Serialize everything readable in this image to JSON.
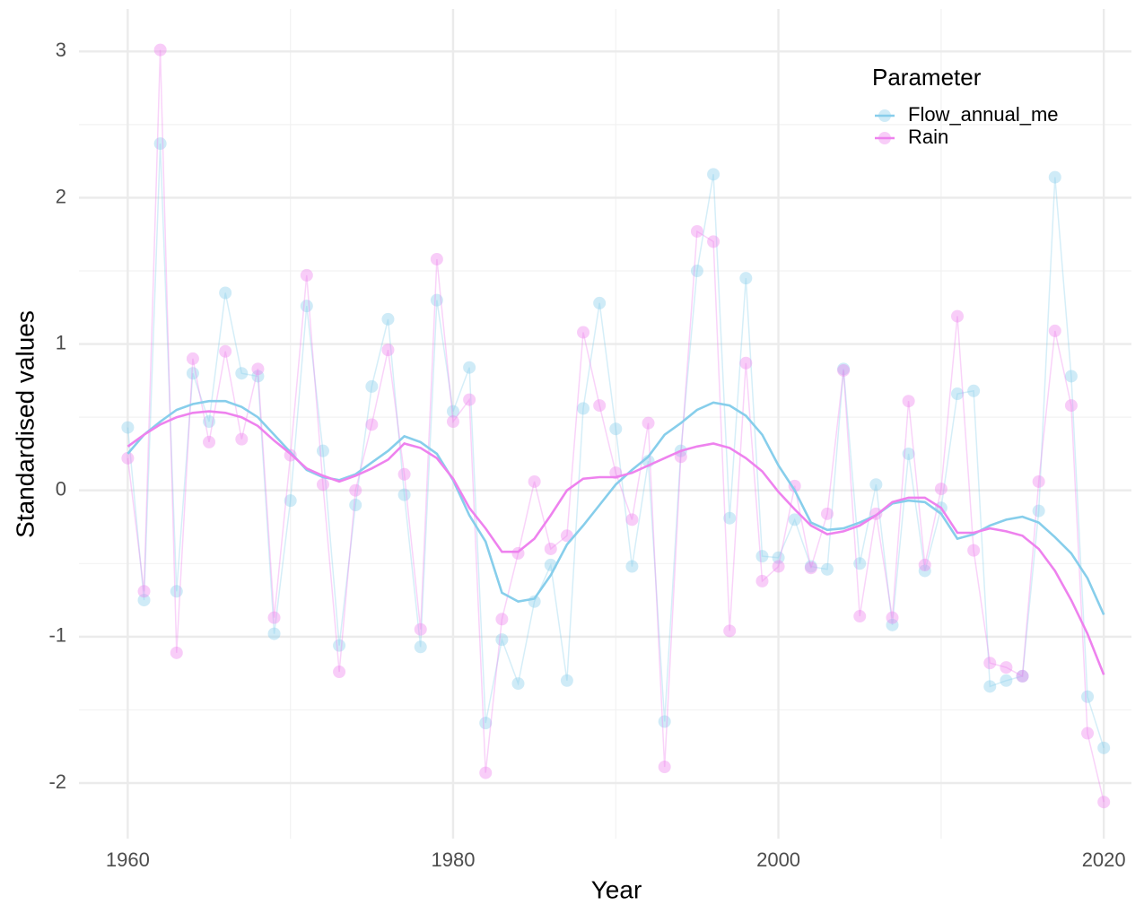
{
  "chart_data": {
    "type": "line",
    "x_label": "Year",
    "y_label": "Standardised values",
    "legend_title": "Parameter",
    "legend_position": "top-right",
    "x": [
      1960,
      1961,
      1962,
      1963,
      1964,
      1965,
      1966,
      1967,
      1968,
      1969,
      1970,
      1971,
      1972,
      1973,
      1974,
      1975,
      1976,
      1977,
      1978,
      1979,
      1980,
      1981,
      1982,
      1983,
      1984,
      1985,
      1986,
      1987,
      1988,
      1989,
      1990,
      1991,
      1992,
      1993,
      1994,
      1995,
      1996,
      1997,
      1998,
      1999,
      2000,
      2001,
      2002,
      2003,
      2004,
      2005,
      2006,
      2007,
      2008,
      2009,
      2010,
      2011,
      2012,
      2013,
      2014,
      2015,
      2016,
      2017,
      2018,
      2019,
      2020
    ],
    "series": [
      {
        "name": "Flow_annual_me",
        "color": "#87ceeb",
        "values": [
          0.43,
          -0.75,
          2.37,
          -0.69,
          0.8,
          0.47,
          1.35,
          0.8,
          0.78,
          -0.98,
          -0.07,
          1.26,
          0.27,
          -1.06,
          -0.1,
          0.71,
          1.17,
          -0.03,
          -1.07,
          1.3,
          0.54,
          0.84,
          -1.59,
          -1.02,
          -1.32,
          -0.76,
          -0.51,
          -1.3,
          0.56,
          1.28,
          0.42,
          -0.52,
          0.2,
          -1.58,
          0.27,
          1.5,
          2.16,
          -0.19,
          1.45,
          -0.45,
          -0.46,
          -0.2,
          -0.52,
          -0.54,
          0.83,
          -0.5,
          0.04,
          -0.92,
          0.25,
          -0.55,
          -0.12,
          0.66,
          0.68,
          -1.34,
          -1.3,
          -1.27,
          -0.14,
          2.14,
          0.78,
          -1.41,
          -1.76
        ],
        "smooth": [
          0.25,
          0.38,
          0.47,
          0.55,
          0.59,
          0.61,
          0.61,
          0.57,
          0.5,
          0.38,
          0.26,
          0.14,
          0.09,
          0.07,
          0.11,
          0.19,
          0.27,
          0.37,
          0.33,
          0.25,
          0.07,
          -0.17,
          -0.35,
          -0.7,
          -0.76,
          -0.74,
          -0.58,
          -0.37,
          -0.24,
          -0.1,
          0.04,
          0.14,
          0.23,
          0.38,
          0.46,
          0.55,
          0.6,
          0.58,
          0.51,
          0.38,
          0.17,
          0.0,
          -0.22,
          -0.27,
          -0.26,
          -0.22,
          -0.17,
          -0.09,
          -0.07,
          -0.08,
          -0.16,
          -0.33,
          -0.3,
          -0.24,
          -0.2,
          -0.18,
          -0.22,
          -0.32,
          -0.43,
          -0.6,
          -0.85
        ]
      },
      {
        "name": "Rain",
        "color": "#ee82ee",
        "values": [
          0.22,
          -0.69,
          3.01,
          -1.11,
          0.9,
          0.33,
          0.95,
          0.35,
          0.83,
          -0.87,
          0.24,
          1.47,
          0.04,
          -1.24,
          0.0,
          0.45,
          0.96,
          0.11,
          -0.95,
          1.58,
          0.47,
          0.62,
          -1.93,
          -0.88,
          -0.43,
          0.06,
          -0.4,
          -0.31,
          1.08,
          0.58,
          0.12,
          -0.2,
          0.46,
          -1.89,
          0.23,
          1.77,
          1.7,
          -0.96,
          0.87,
          -0.62,
          -0.52,
          0.03,
          -0.53,
          -0.16,
          0.82,
          -0.86,
          -0.16,
          -0.87,
          0.61,
          -0.51,
          0.01,
          1.19,
          -0.41,
          -1.18,
          -1.21,
          -1.27,
          0.06,
          1.09,
          0.58,
          -1.66,
          -2.13
        ],
        "smooth": [
          0.3,
          0.38,
          0.45,
          0.5,
          0.53,
          0.54,
          0.53,
          0.5,
          0.44,
          0.34,
          0.25,
          0.15,
          0.1,
          0.06,
          0.1,
          0.15,
          0.21,
          0.32,
          0.29,
          0.22,
          0.08,
          -0.12,
          -0.26,
          -0.42,
          -0.42,
          -0.33,
          -0.17,
          0.0,
          0.08,
          0.09,
          0.09,
          0.12,
          0.17,
          0.22,
          0.27,
          0.3,
          0.32,
          0.29,
          0.22,
          0.13,
          -0.01,
          -0.13,
          -0.24,
          -0.3,
          -0.28,
          -0.24,
          -0.17,
          -0.08,
          -0.05,
          -0.05,
          -0.12,
          -0.29,
          -0.29,
          -0.26,
          -0.28,
          -0.31,
          -0.4,
          -0.55,
          -0.75,
          -0.98,
          -1.26
        ]
      }
    ],
    "xlim": [
      1957,
      2021.7
    ],
    "xticks": [
      1960,
      1980,
      2000,
      2020
    ],
    "xminor": [
      1970,
      1990,
      2010
    ],
    "ylim": [
      -2.38,
      3.29
    ],
    "yticks": [
      -2,
      -1,
      0,
      1,
      2,
      3
    ],
    "yminor": [
      -1.5,
      -0.5,
      0.5,
      1.5,
      2.5
    ],
    "grid": true
  }
}
